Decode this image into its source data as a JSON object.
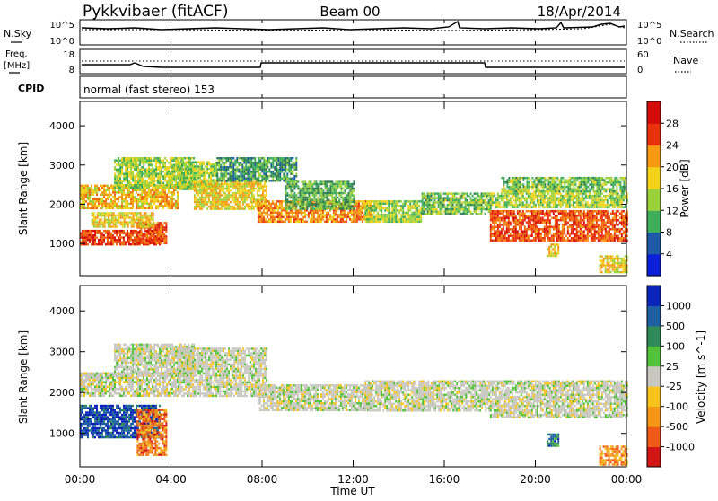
{
  "header": {
    "station": "Pykkvibaer (fitACF)",
    "beam": "Beam 00",
    "date": "18/Apr/2014"
  },
  "panels": {
    "nsky": {
      "left_label": "N.Sky",
      "right_label": "N.Search",
      "left_ticks": [
        "10^5",
        "10^0"
      ],
      "right_ticks": [
        "10^5",
        "10^0"
      ]
    },
    "freq": {
      "left_label_1": "Freq.",
      "left_label_2": "[MHz]",
      "left_ticks": [
        "18",
        "8"
      ],
      "right_label": "Nave",
      "right_ticks": [
        "60",
        "0"
      ]
    },
    "cpid": {
      "label": "CPID",
      "text": "normal (fast stereo) 153"
    }
  },
  "time_axis": {
    "label": "Time UT",
    "ticks": [
      "00:00",
      "04:00",
      "08:00",
      "12:00",
      "16:00",
      "20:00",
      "00:00"
    ]
  },
  "colors": {
    "power": [
      "#0b1fd9",
      "#1e5aa8",
      "#2e7d52",
      "#3fae5b",
      "#9bd23c",
      "#f2d21b",
      "#f59a12",
      "#f06a0c",
      "#e8300a",
      "#d40b0b"
    ],
    "velocity": [
      "#d11414",
      "#ee5a1a",
      "#f59618",
      "#f7c31c",
      "#c8c8c0",
      "#c8c8c0",
      "#52c23a",
      "#2f8a5a",
      "#1d5fa0",
      "#0a23b8"
    ]
  },
  "chart_data": [
    {
      "type": "heatmap",
      "title": "Power",
      "xlabel": "Time UT",
      "ylabel": "Slant Range [km]",
      "x_ticks": [
        "00:00",
        "04:00",
        "08:00",
        "12:00",
        "16:00",
        "20:00",
        "00:00"
      ],
      "y_ticks": [
        1000,
        2000,
        3000,
        4000
      ],
      "ylim": [
        180,
        4620
      ],
      "colorbar": {
        "label": "Power [dB]",
        "ticks": [
          "4",
          "8",
          "12",
          "16",
          "20",
          "24",
          "28"
        ],
        "range": [
          0,
          32
        ]
      },
      "regions": [
        {
          "t0": 0.0,
          "t1": 4.3,
          "r0": 1900,
          "r1": 2500,
          "level": 0.6
        },
        {
          "t0": 1.5,
          "t1": 5.0,
          "r0": 2400,
          "r1": 3200,
          "level": 0.45
        },
        {
          "t0": 0.0,
          "t1": 3.5,
          "r0": 1000,
          "r1": 1350,
          "level": 0.85
        },
        {
          "t0": 2.5,
          "t1": 3.8,
          "r0": 1000,
          "r1": 1550,
          "level": 0.8
        },
        {
          "t0": 0.5,
          "t1": 3.2,
          "r0": 1400,
          "r1": 1800,
          "level": 0.55
        },
        {
          "t0": 4.3,
          "t1": 6.0,
          "r0": 2400,
          "r1": 3100,
          "level": 0.45
        },
        {
          "t0": 5.0,
          "t1": 8.2,
          "r0": 1900,
          "r1": 2600,
          "level": 0.55
        },
        {
          "t0": 6.0,
          "t1": 9.5,
          "r0": 2600,
          "r1": 3200,
          "level": 0.3
        },
        {
          "t0": 7.8,
          "t1": 12.8,
          "r0": 1550,
          "r1": 2100,
          "level": 0.7
        },
        {
          "t0": 9.0,
          "t1": 12.0,
          "r0": 1900,
          "r1": 2600,
          "level": 0.35
        },
        {
          "t0": 12.5,
          "t1": 15.0,
          "r0": 1550,
          "r1": 2100,
          "level": 0.45
        },
        {
          "t0": 15.0,
          "t1": 18.0,
          "r0": 1750,
          "r1": 2300,
          "level": 0.4
        },
        {
          "t0": 18.0,
          "t1": 24.0,
          "r0": 1100,
          "r1": 1850,
          "level": 0.8
        },
        {
          "t0": 18.0,
          "t1": 24.0,
          "r0": 1900,
          "r1": 2300,
          "level": 0.45
        },
        {
          "t0": 18.5,
          "t1": 24.0,
          "r0": 2300,
          "r1": 2700,
          "level": 0.4
        },
        {
          "t0": 20.5,
          "t1": 21.0,
          "r0": 700,
          "r1": 1000,
          "level": 0.55
        },
        {
          "t0": 22.8,
          "t1": 24.0,
          "r0": 250,
          "r1": 700,
          "level": 0.55
        }
      ]
    },
    {
      "type": "heatmap",
      "title": "Velocity",
      "xlabel": "Time UT",
      "ylabel": "Slant Range [km]",
      "x_ticks": [
        "00:00",
        "04:00",
        "08:00",
        "12:00",
        "16:00",
        "20:00",
        "00:00"
      ],
      "y_ticks": [
        1000,
        2000,
        3000,
        4000
      ],
      "ylim": [
        180,
        4620
      ],
      "colorbar": {
        "label": "Velocity [m s^-1]",
        "ticks": [
          "1000",
          "500",
          "100",
          "25",
          "-25",
          "-100",
          "-500",
          "-1000"
        ]
      },
      "regions": [
        {
          "t0": 0.0,
          "t1": 4.3,
          "r0": 1900,
          "r1": 2500,
          "level": 0.5
        },
        {
          "t0": 1.5,
          "t1": 5.0,
          "r0": 2400,
          "r1": 3200,
          "level": 0.5
        },
        {
          "t0": 0.0,
          "t1": 3.5,
          "r0": 900,
          "r1": 1700,
          "level": 0.9
        },
        {
          "t0": 2.5,
          "t1": 3.8,
          "r0": 500,
          "r1": 1600,
          "level": 0.2
        },
        {
          "t0": 4.3,
          "t1": 8.2,
          "r0": 1900,
          "r1": 3100,
          "level": 0.5
        },
        {
          "t0": 7.8,
          "t1": 12.8,
          "r0": 1550,
          "r1": 2200,
          "level": 0.5
        },
        {
          "t0": 12.5,
          "t1": 18.0,
          "r0": 1550,
          "r1": 2300,
          "level": 0.5
        },
        {
          "t0": 18.0,
          "t1": 24.0,
          "r0": 1400,
          "r1": 2300,
          "level": 0.5
        },
        {
          "t0": 20.5,
          "t1": 21.0,
          "r0": 700,
          "r1": 1000,
          "level": 0.8
        },
        {
          "t0": 22.8,
          "t1": 24.0,
          "r0": 250,
          "r1": 700,
          "level": 0.25
        }
      ]
    }
  ]
}
